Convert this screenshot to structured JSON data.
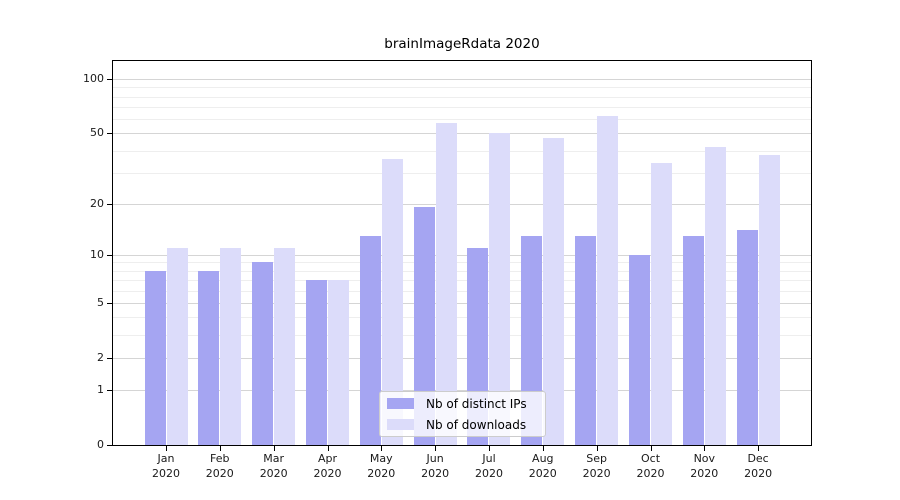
{
  "title": "brainImageRdata 2020",
  "chart_data": {
    "type": "bar",
    "title": "brainImageRdata 2020",
    "categories": [
      "Jan",
      "Feb",
      "Mar",
      "Apr",
      "May",
      "Jun",
      "Jul",
      "Aug",
      "Sep",
      "Oct",
      "Nov",
      "Dec"
    ],
    "year": "2020",
    "series": [
      {
        "name": "Nb of distinct IPs",
        "color": "#a5a5f2",
        "values": [
          8,
          8,
          9,
          7,
          13,
          19,
          11,
          13,
          13,
          10,
          13,
          14
        ]
      },
      {
        "name": "Nb of downloads",
        "color": "#dcdcfa",
        "values": [
          11,
          11,
          11,
          7,
          36,
          57,
          50,
          47,
          62,
          34,
          42,
          38
        ]
      }
    ],
    "xlabel": "",
    "ylabel": "",
    "yscale": "log1p",
    "ylim": [
      0,
      126
    ],
    "y_major_ticks": [
      0,
      1,
      2,
      5,
      10,
      20,
      50,
      100
    ],
    "y_minor_ticks": [
      3,
      4,
      6,
      7,
      8,
      9,
      30,
      40,
      60,
      70,
      80,
      90
    ],
    "grid": true,
    "legend_position": "inside-bottom-center"
  },
  "legend": {
    "items": [
      {
        "label": "Nb of distinct IPs",
        "color": "#a5a5f2"
      },
      {
        "label": "Nb of downloads",
        "color": "#dcdcfa"
      }
    ]
  },
  "colors": {
    "background": "#ffffff",
    "axis": "#000000",
    "grid_major": "#d5d5d5",
    "grid_minor": "#eeeeee",
    "bar_dark": "#a5a5f2",
    "bar_light": "#dcdcfa"
  }
}
